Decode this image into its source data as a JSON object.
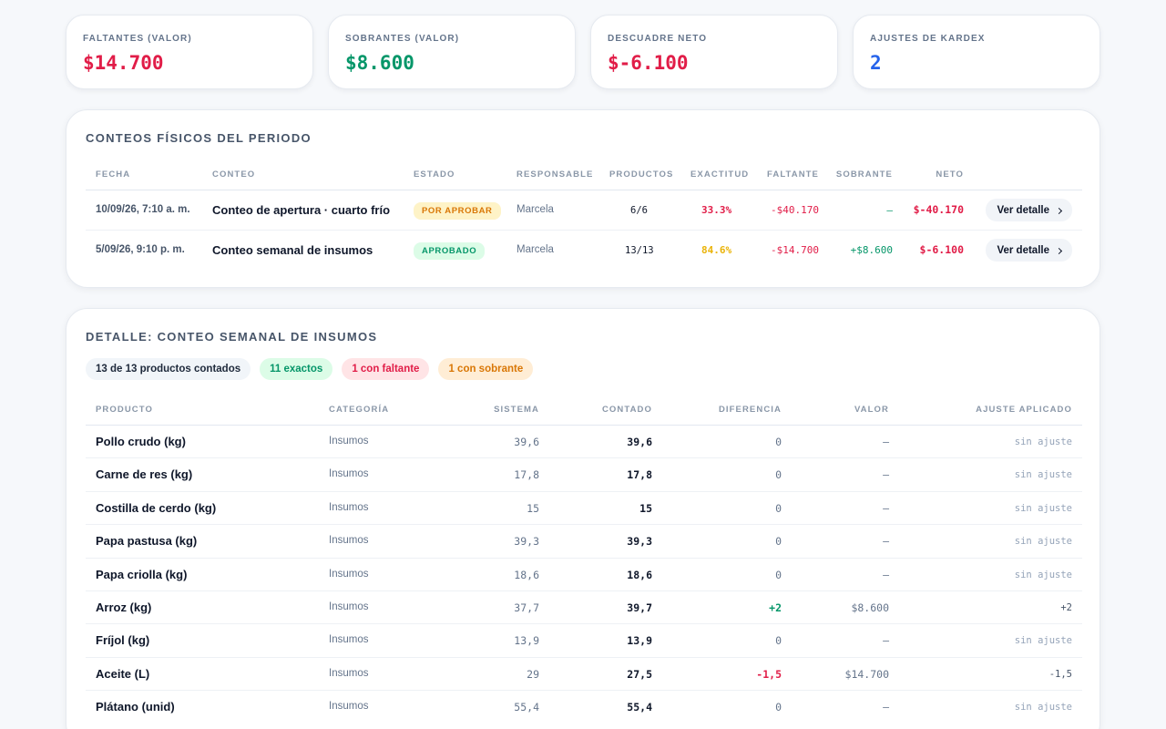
{
  "kpis": [
    {
      "label": "FALTANTES (VALOR)",
      "value": "$14.700",
      "color": "#e11d48"
    },
    {
      "label": "SOBRANTES (VALOR)",
      "value": "$8.600",
      "color": "#059669"
    },
    {
      "label": "DESCUADRE NETO",
      "value": "$-6.100",
      "color": "#e11d48"
    },
    {
      "label": "AJUSTES DE KARDEX",
      "value": "2",
      "color": "#2563eb"
    }
  ],
  "counts": {
    "title": "CONTEOS FÍSICOS DEL PERIODO",
    "headers": {
      "fecha": "FECHA",
      "conteo": "CONTEO",
      "estado": "ESTADO",
      "responsable": "RESPONSABLE",
      "productos": "PRODUCTOS",
      "exactitud": "EXACTITUD",
      "faltante": "FALTANTE",
      "sobrante": "SOBRANTE",
      "neto": "NETO"
    },
    "rows": [
      {
        "fecha": "10/09/26, 7:10 a. m.",
        "conteo": "Conteo de apertura · cuarto frío",
        "estado": "POR APROBAR",
        "responsable": "Marcela",
        "productos": "6/6",
        "exactitud": "33.3%",
        "faltante": "-$40.170",
        "sobrante": "—",
        "neto": "$-40.170",
        "action": "Ver detalle"
      },
      {
        "fecha": "5/09/26, 9:10 p. m.",
        "conteo": "Conteo semanal de insumos",
        "estado": "APROBADO",
        "responsable": "Marcela",
        "productos": "13/13",
        "exactitud": "84.6%",
        "faltante": "-$14.700",
        "sobrante": "+$8.600",
        "neto": "$-6.100",
        "action": "Ver detalle"
      }
    ]
  },
  "detail": {
    "title": "DETALLE: CONTEO SEMANAL DE INSUMOS",
    "pills": [
      "13 de 13 productos contados",
      "11 exactos",
      "1 con faltante",
      "1 con sobrante"
    ],
    "headers": {
      "producto": "PRODUCTO",
      "categoria": "CATEGORÍA",
      "sistema": "SISTEMA",
      "contado": "CONTADO",
      "diferencia": "DIFERENCIA",
      "valor": "VALOR",
      "ajuste": "AJUSTE APLICADO"
    },
    "rows": [
      {
        "producto": "Pollo crudo (kg)",
        "categoria": "Insumos",
        "sistema": "39,6",
        "contado": "39,6",
        "diferencia": "0",
        "valor": "—",
        "ajuste": "sin ajuste"
      },
      {
        "producto": "Carne de res (kg)",
        "categoria": "Insumos",
        "sistema": "17,8",
        "contado": "17,8",
        "diferencia": "0",
        "valor": "—",
        "ajuste": "sin ajuste"
      },
      {
        "producto": "Costilla de cerdo (kg)",
        "categoria": "Insumos",
        "sistema": "15",
        "contado": "15",
        "diferencia": "0",
        "valor": "—",
        "ajuste": "sin ajuste"
      },
      {
        "producto": "Papa pastusa (kg)",
        "categoria": "Insumos",
        "sistema": "39,3",
        "contado": "39,3",
        "diferencia": "0",
        "valor": "—",
        "ajuste": "sin ajuste"
      },
      {
        "producto": "Papa criolla (kg)",
        "categoria": "Insumos",
        "sistema": "18,6",
        "contado": "18,6",
        "diferencia": "0",
        "valor": "—",
        "ajuste": "sin ajuste"
      },
      {
        "producto": "Arroz (kg)",
        "categoria": "Insumos",
        "sistema": "37,7",
        "contado": "39,7",
        "diferencia": "+2",
        "valor": "$8.600",
        "ajuste": "+2"
      },
      {
        "producto": "Fríjol (kg)",
        "categoria": "Insumos",
        "sistema": "13,9",
        "contado": "13,9",
        "diferencia": "0",
        "valor": "—",
        "ajuste": "sin ajuste"
      },
      {
        "producto": "Aceite (L)",
        "categoria": "Insumos",
        "sistema": "29",
        "contado": "27,5",
        "diferencia": "-1,5",
        "valor": "$14.700",
        "ajuste": "-1,5"
      },
      {
        "producto": "Plátano (unid)",
        "categoria": "Insumos",
        "sistema": "55,4",
        "contado": "55,4",
        "diferencia": "0",
        "valor": "—",
        "ajuste": "sin ajuste"
      }
    ]
  },
  "colors": {
    "red": "#e11d48",
    "green": "#059669",
    "blue": "#2563eb",
    "amber": "#d97706",
    "muted": "#94a3b8"
  }
}
